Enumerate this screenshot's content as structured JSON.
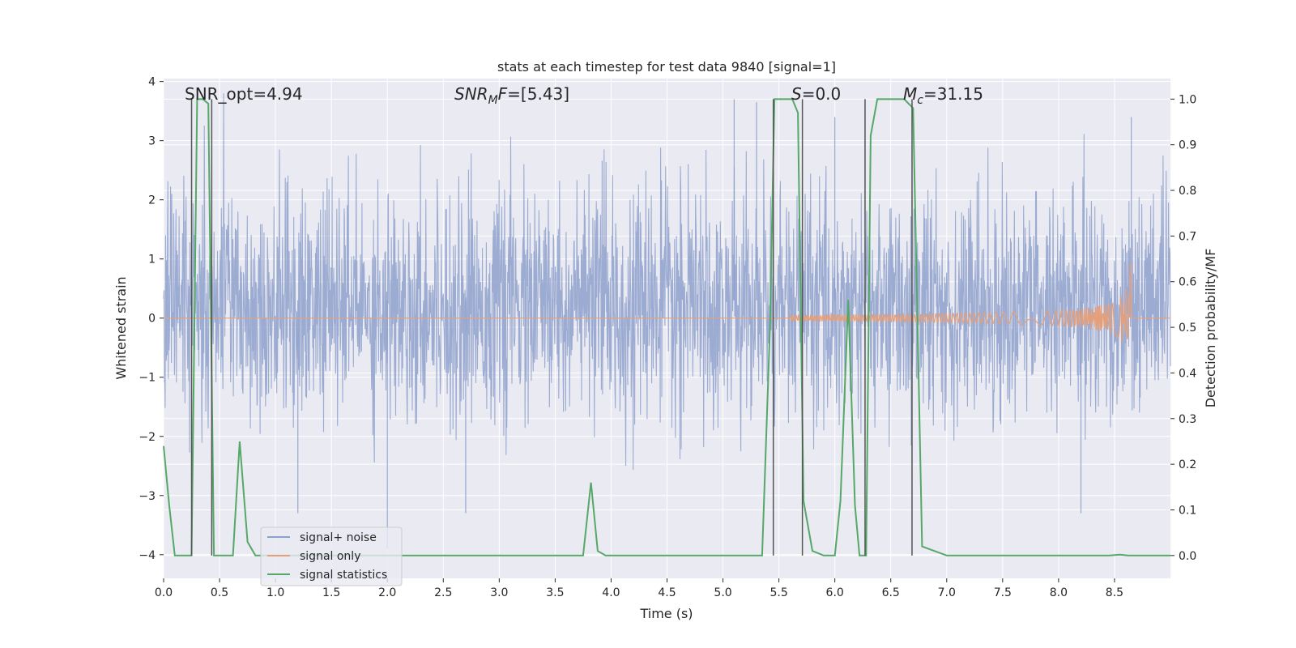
{
  "chart_data": {
    "type": "line",
    "title": "stats at each timestep for test data 9840 [signal=1]",
    "xlabel": "Time (s)",
    "ylabel": "Whitened strain",
    "ylabel_right": "Detection probability/MF",
    "xlim": [
      0,
      9.0
    ],
    "ylim": [
      -4.4,
      4.05
    ],
    "ylim_right": [
      -0.05,
      1.045
    ],
    "xticks": [
      0.0,
      0.5,
      1.0,
      1.5,
      2.0,
      2.5,
      3.0,
      3.5,
      4.0,
      4.5,
      5.0,
      5.5,
      6.0,
      6.5,
      7.0,
      7.5,
      8.0,
      8.5
    ],
    "xtick_labels": [
      "0.0",
      "0.5",
      "1.0",
      "1.5",
      "2.0",
      "2.5",
      "3.0",
      "3.5",
      "4.0",
      "4.5",
      "5.0",
      "5.5",
      "6.0",
      "6.5",
      "7.0",
      "7.5",
      "8.0",
      "8.5"
    ],
    "yticks": [
      4,
      3,
      2,
      1,
      0,
      -1,
      -2,
      -3,
      -4
    ],
    "ytick_labels": [
      "4",
      "3",
      "2",
      "1",
      "0",
      "−1",
      "−2",
      "−3",
      "−4"
    ],
    "yticks_right": [
      1.0,
      0.9,
      0.8,
      0.7,
      0.6,
      0.5,
      0.4,
      0.3,
      0.2,
      0.1,
      0.0
    ],
    "ytick_labels_right": [
      "1.0",
      "0.9",
      "0.8",
      "0.7",
      "0.6",
      "0.5",
      "0.4",
      "0.3",
      "0.2",
      "0.1",
      "0.0"
    ],
    "annotations": [
      {
        "id": "snr-opt",
        "text": "SNR_opt=4.94",
        "x": 0.2
      },
      {
        "id": "snr-mf",
        "text": "SNR_MF=[5.43]",
        "x": 2.6
      },
      {
        "id": "s-val",
        "text": "S=0.0",
        "x": 5.6
      },
      {
        "id": "mc-val",
        "text": "M_c=31.15",
        "x": 6.6
      }
    ],
    "legend_position": "lower-left",
    "series": [
      {
        "name": "signal+ noise",
        "color": "#8da0cb",
        "kind": "noise",
        "x_range": [
          0,
          9.0
        ],
        "approx_envelope": [
          -2.5,
          3.8
        ],
        "peaks": [
          {
            "x": 2.0,
            "y": -3.9
          },
          {
            "x": 5.1,
            "y": 3.7
          },
          {
            "x": 5.3,
            "y": 3.65
          },
          {
            "x": 6.0,
            "y": 3.4
          },
          {
            "x": 8.65,
            "y": 3.4
          },
          {
            "x": 8.2,
            "y": -3.3
          },
          {
            "x": 1.2,
            "y": -3.3
          },
          {
            "x": 2.7,
            "y": -3.3
          }
        ]
      },
      {
        "name": "signal only",
        "color": "#e5a07b",
        "kind": "chirp",
        "start_x": 5.6,
        "merger_x": 8.65,
        "peak_amplitude": 1.1
      },
      {
        "name": "signal statistics",
        "color": "#55a868",
        "kind": "line",
        "axis": "right",
        "x": [
          0.0,
          0.05,
          0.1,
          0.15,
          0.2,
          0.25,
          0.3,
          0.35,
          0.4,
          0.45,
          0.5,
          0.55,
          0.62,
          0.68,
          0.75,
          0.82,
          0.9,
          1.0,
          3.6,
          3.7,
          3.75,
          3.82,
          3.88,
          3.95,
          4.0,
          5.35,
          5.42,
          5.46,
          5.52,
          5.62,
          5.67,
          5.72,
          5.8,
          5.9,
          6.0,
          6.05,
          6.12,
          6.18,
          6.22,
          6.28,
          6.32,
          6.38,
          6.45,
          6.62,
          6.7,
          6.78,
          7.0,
          8.45,
          8.55,
          8.62,
          9.0
        ],
        "y": [
          0.24,
          0.11,
          0.0,
          0.0,
          0.0,
          0.0,
          1.0,
          1.0,
          0.99,
          0.0,
          0.0,
          0.0,
          0.0,
          0.25,
          0.03,
          0.0,
          0.0,
          0.0,
          0.0,
          0.0,
          0.0,
          0.16,
          0.01,
          0.0,
          0.0,
          0.0,
          0.5,
          1.0,
          1.0,
          1.0,
          0.97,
          0.12,
          0.01,
          0.0,
          0.0,
          0.12,
          0.56,
          0.11,
          0.0,
          0.0,
          0.92,
          1.0,
          1.0,
          1.0,
          0.98,
          0.02,
          0.0,
          0.0,
          0.002,
          0.0,
          0.0
        ]
      }
    ],
    "vertical_markers": [
      0.25,
      0.43,
      5.45,
      5.71,
      6.27,
      6.69
    ]
  }
}
